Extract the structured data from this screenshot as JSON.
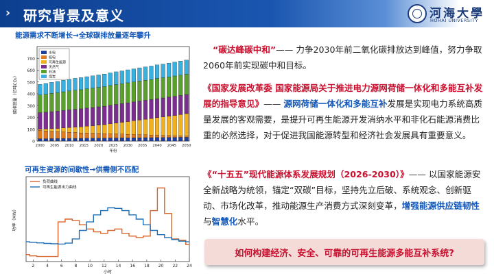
{
  "header": {
    "title": "研究背景及意义",
    "chevron": "›"
  },
  "logo": {
    "cn": "河海大學",
    "en": "HOHAI UNIVERSITY"
  },
  "chart1": {
    "title": "能源需求不断增长→全球碳排放量逐年攀升"
  },
  "chart2": {
    "title": "可再生资源的间歇性→供需侧不匹配"
  },
  "para1": {
    "quote": "“碳达峰碳中和”",
    "body": "—— 力争2030年前二氧化碳排放达到峰值，努力争取2060年前实现碳中和目标。"
  },
  "para2": {
    "quote": "《国家发展改革委 国家能源局关于推进电力源网荷储一体化和多能互补发展的指导意见》",
    "dash": "—— ",
    "highlight": "源网荷储一体化和多能互补",
    "body": "发展是实现电力系统高质量发展的客观需要，是提升可再生能源开发消纳水平和非化石能源消费比重的必然选择，对于促进我国能源转型和经济社会发展具有重要意义。"
  },
  "para3": {
    "quote": "《“十五五”现代能源体系发展规划（2026-2030）》",
    "body": "—— 以国家能源安全新战略为统领，锚定“双碳”目标，坚持先立后破、系统观念、创新驱动、市场化改革，推动能源生产消费方式深刻变革，",
    "bold1": "增强能源供应链韧性",
    "mid": "与",
    "bold2": "智慧化",
    "tail": "水平。"
  },
  "question": "如何构建经济、安全、可靠的可再生能源多能互补系统?",
  "chart_data": [
    {
      "type": "bar",
      "stacked": true,
      "categories": [
        "2000",
        "2002",
        "2004",
        "2006",
        "2008",
        "2010",
        "2012",
        "2014",
        "2016",
        "2018",
        "2020",
        "2022",
        "2024",
        "2026",
        "2028",
        "2030",
        "2032",
        "2034",
        "2036",
        "2038",
        "2040",
        "2042",
        "2044",
        "2046",
        "2048",
        "2050"
      ],
      "x_tick_labels": [
        "2000",
        "2005",
        "2010",
        "2015",
        "2020",
        "2025",
        "2030",
        "2035",
        "2040",
        "2045",
        "2050"
      ],
      "xlabel": "年份",
      "ylabel": "碳排放量（亿吨CO₂）",
      "ylim": [
        0,
        800
      ],
      "y_ticks": [
        0,
        100,
        200,
        300,
        400,
        500,
        600,
        700
      ],
      "legend_position": "top-left",
      "series": [
        {
          "name": "水电",
          "color": "#1f3fa0",
          "values": [
            20,
            20,
            21,
            21,
            22,
            22,
            23,
            23,
            24,
            24,
            25,
            25,
            26,
            26,
            27,
            27,
            28,
            28,
            29,
            29,
            30,
            30,
            31,
            31,
            32,
            32
          ]
        },
        {
          "name": "核电",
          "color": "#e07a1f",
          "values": [
            70,
            66,
            62,
            58,
            55,
            52,
            49,
            46,
            44,
            42,
            40,
            38,
            36,
            34,
            32,
            30,
            28,
            26,
            24,
            22,
            20,
            18,
            16,
            14,
            12,
            10
          ]
        },
        {
          "name": "可再生能源",
          "color": "#f0b020",
          "values": [
            10,
            16,
            22,
            28,
            34,
            40,
            46,
            52,
            58,
            64,
            70,
            76,
            84,
            92,
            100,
            108,
            116,
            124,
            132,
            140,
            148,
            156,
            164,
            172,
            180,
            190
          ]
        },
        {
          "name": "天然气",
          "color": "#7a2e8e",
          "values": [
            140,
            142,
            144,
            146,
            148,
            150,
            151,
            152,
            153,
            154,
            155,
            156,
            157,
            158,
            158,
            159,
            159,
            160,
            160,
            160,
            161,
            161,
            161,
            162,
            162,
            162
          ]
        },
        {
          "name": "石油",
          "color": "#5aa02c",
          "values": [
            150,
            152,
            154,
            156,
            158,
            160,
            161,
            162,
            163,
            164,
            165,
            166,
            167,
            168,
            168,
            169,
            169,
            170,
            170,
            170,
            171,
            171,
            171,
            172,
            172,
            172
          ]
        },
        {
          "name": "煤炭",
          "color": "#3ab0e0",
          "values": [
            90,
            92,
            94,
            96,
            98,
            100,
            101,
            102,
            103,
            104,
            105,
            106,
            107,
            108,
            109,
            110,
            111,
            112,
            113,
            114,
            115,
            116,
            117,
            118,
            119,
            120
          ]
        }
      ]
    },
    {
      "type": "line",
      "x": [
        1,
        2,
        3,
        4,
        5,
        6,
        7,
        8,
        9,
        10,
        11,
        12,
        13,
        14,
        15,
        16,
        17,
        18,
        19,
        20,
        21,
        22,
        23,
        24
      ],
      "x_ticks": [
        2,
        4,
        6,
        8,
        10,
        12,
        14,
        16,
        18,
        20,
        22,
        24
      ],
      "xlabel": "小时",
      "ylabel": "功率（MW）",
      "ylim": [
        0,
        300
      ],
      "legend_position": "top-left",
      "series": [
        {
          "name": "负荷曲线",
          "color": "#d9642a",
          "values": [
            25,
            20,
            18,
            18,
            18,
            140,
            150,
            145,
            130,
            115,
            105,
            100,
            110,
            115,
            100,
            90,
            85,
            90,
            180,
            260,
            170,
            80,
            75,
            60
          ]
        },
        {
          "name": "可再生能源出力曲线",
          "color": "#1f6fb5",
          "values": [
            70,
            68,
            66,
            64,
            63,
            62,
            65,
            80,
            110,
            140,
            165,
            180,
            190,
            188,
            180,
            165,
            150,
            130,
            110,
            95,
            85,
            78,
            72,
            70
          ]
        }
      ]
    }
  ]
}
